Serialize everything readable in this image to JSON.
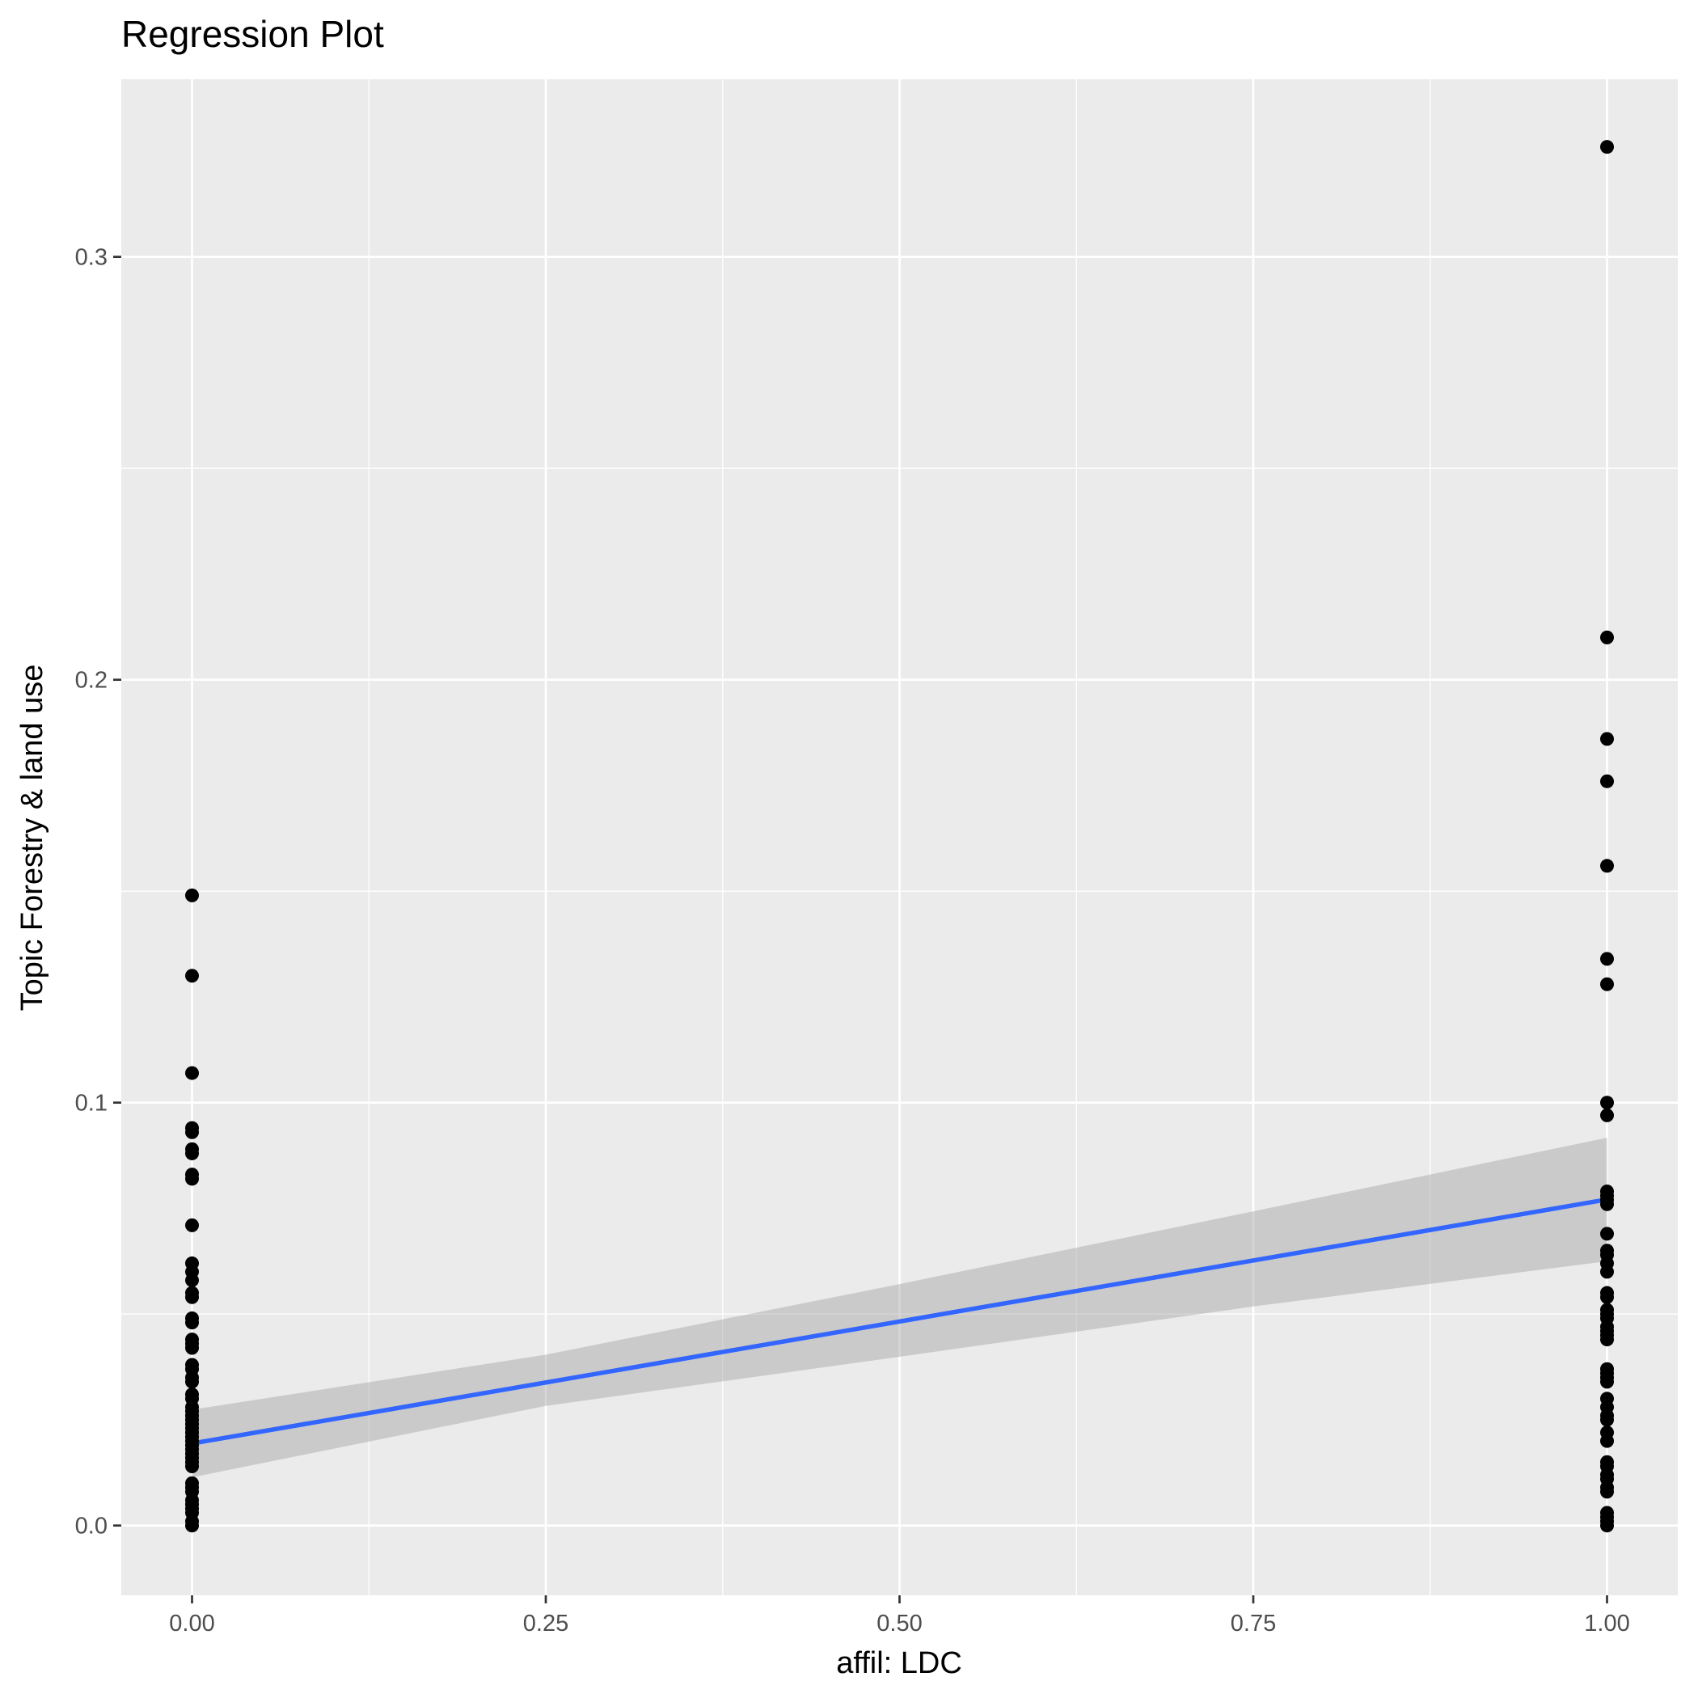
{
  "chart_data": {
    "type": "scatter",
    "title": "Regression Plot",
    "xlabel": "affil: LDC",
    "ylabel": "Topic Forestry & land use",
    "xlim": [
      -0.05,
      1.05
    ],
    "ylim": [
      -0.0165,
      0.342
    ],
    "x_ticks": [
      0,
      0.25,
      0.5,
      0.75,
      1
    ],
    "x_tick_labels": [
      "0.00",
      "0.25",
      "0.50",
      "0.75",
      "1.00"
    ],
    "y_ticks": [
      0,
      0.1,
      0.2,
      0.3
    ],
    "y_tick_labels": [
      "0.0",
      "0.1",
      "0.2",
      "0.3"
    ],
    "grid": true,
    "legend": "none",
    "colors": {
      "panel": "#ebebeb",
      "grid": "#ffffff",
      "points": "#000000",
      "fit_line": "#3366ff",
      "ci_band": "#999999"
    },
    "series": [
      {
        "type": "scatter",
        "x": [
          0,
          0,
          0,
          0,
          0,
          0,
          0,
          0,
          0,
          0,
          0,
          0,
          0,
          0,
          0,
          0,
          0,
          0,
          0,
          0,
          0,
          0,
          0,
          0,
          0,
          0,
          0,
          0,
          0,
          0,
          0,
          0,
          0,
          0,
          0,
          0,
          0,
          0,
          0,
          0,
          0,
          0,
          0,
          0,
          0,
          0,
          0,
          0,
          0,
          0,
          1,
          1,
          1,
          1,
          1,
          1,
          1,
          1,
          1,
          1,
          1,
          1,
          1,
          1,
          1,
          1,
          1,
          1,
          1,
          1,
          1,
          1,
          1,
          1,
          1,
          1,
          1,
          1,
          1,
          1,
          1,
          1,
          1,
          1,
          1,
          1,
          1,
          1,
          1,
          1,
          1,
          1,
          1,
          1,
          1,
          1,
          1
        ],
        "y": [
          0.149,
          0.13,
          0.107,
          0.094,
          0.093,
          0.089,
          0.088,
          0.083,
          0.082,
          0.071,
          0.062,
          0.06,
          0.058,
          0.055,
          0.054,
          0.049,
          0.048,
          0.044,
          0.043,
          0.042,
          0.038,
          0.037,
          0.035,
          0.034,
          0.031,
          0.03,
          0.028,
          0.027,
          0.026,
          0.025,
          0.024,
          0.023,
          0.022,
          0.021,
          0.02,
          0.019,
          0.018,
          0.017,
          0.016,
          0.015,
          0.014,
          0.01,
          0.009,
          0.008,
          0.006,
          0.005,
          0.004,
          0.003,
          0.001,
          0,
          0.326,
          0.21,
          0.186,
          0.176,
          0.156,
          0.134,
          0.128,
          0.1,
          0.097,
          0.079,
          0.078,
          0.077,
          0.076,
          0.069,
          0.065,
          0.064,
          0.062,
          0.06,
          0.055,
          0.054,
          0.051,
          0.05,
          0.049,
          0.047,
          0.046,
          0.045,
          0.044,
          0.037,
          0.036,
          0.035,
          0.034,
          0.03,
          0.028,
          0.026,
          0.025,
          0.022,
          0.02,
          0.015,
          0.014,
          0.012,
          0.011,
          0.009,
          0.008,
          0.003,
          0.002,
          0.001,
          0
        ]
      },
      {
        "type": "line",
        "x": [
          0,
          1
        ],
        "y": [
          0.0194,
          0.0771
        ]
      },
      {
        "type": "area",
        "x": [
          0,
          0.25,
          0.5,
          0.75,
          1
        ],
        "upper": [
          0.0274,
          0.0404,
          0.0571,
          0.0743,
          0.0917
        ],
        "lower": [
          0.0114,
          0.0283,
          0.0399,
          0.0518,
          0.0625
        ]
      }
    ]
  }
}
